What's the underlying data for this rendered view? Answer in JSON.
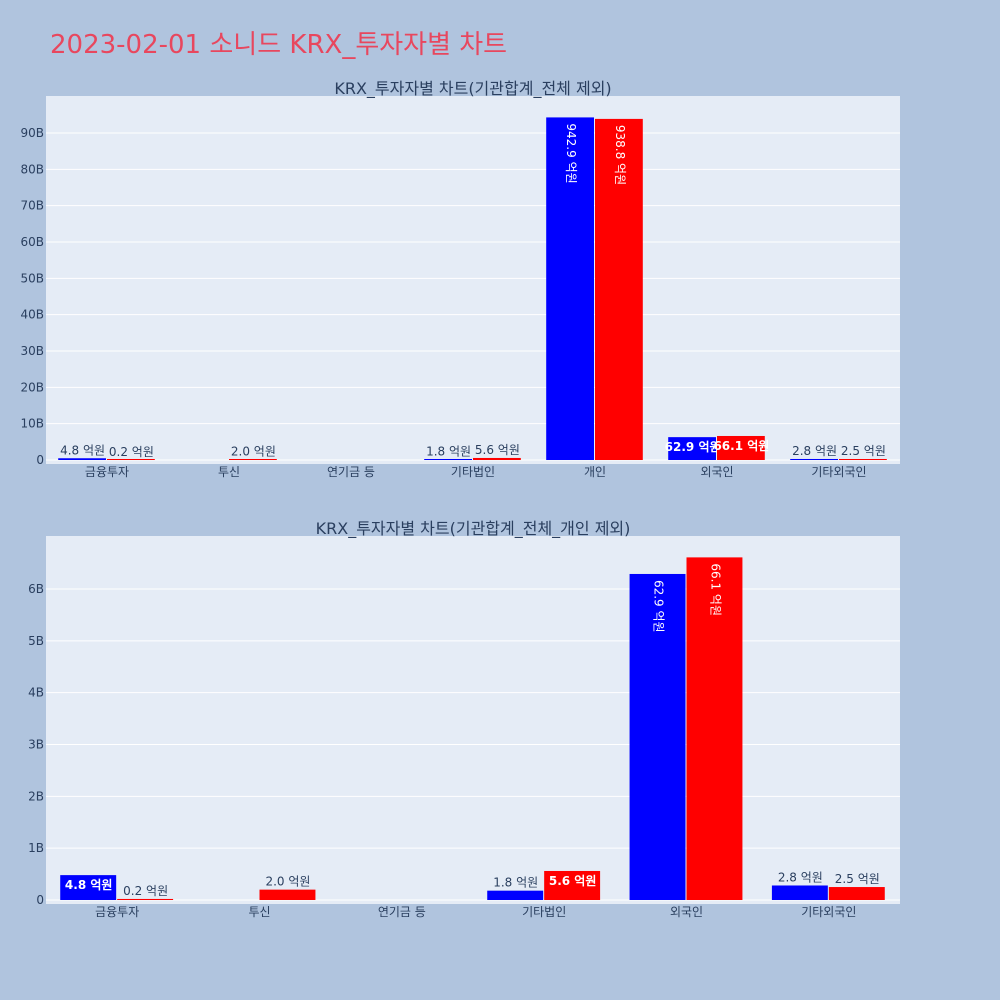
{
  "page_title": "2023-02-01 소니드 KRX_투자자별 차트",
  "colors": {
    "buy": "#0000ff",
    "sell": "#ff0000",
    "plot_bg": "#e5ecf6",
    "page_bg": "#b0c4de",
    "title": "#e8475e",
    "text": "#2a3f5f"
  },
  "chart_data": [
    {
      "type": "bar",
      "title": "KRX_투자자별 차트(기관합계_전체 제외)",
      "categories": [
        "금융투자",
        "투신",
        "연기금 등",
        "기타법인",
        "개인",
        "외국인",
        "기타외국인"
      ],
      "ylim": [
        0,
        100
      ],
      "yticks": [
        0,
        10,
        20,
        30,
        40,
        50,
        60,
        70,
        80,
        90
      ],
      "ytick_labels": [
        "0",
        "10B",
        "20B",
        "30B",
        "40B",
        "50B",
        "60B",
        "70B",
        "80B",
        "90B"
      ],
      "grid": true,
      "series": [
        {
          "color": "#0000ff",
          "values": [
            0.48,
            null,
            null,
            0.18,
            94.29,
            6.29,
            0.28
          ],
          "labels": [
            "4.8 억원",
            "",
            "",
            "1.8 억원",
            "942.9 억원",
            "62.9 억원",
            "2.8 억원"
          ]
        },
        {
          "color": "#ff0000",
          "values": [
            0.02,
            0.2,
            null,
            0.56,
            93.88,
            6.61,
            0.25
          ],
          "labels": [
            "0.2 억원",
            "2.0 억원",
            "",
            "5.6 억원",
            "938.8 억원",
            "66.1 억원",
            "2.5 억원"
          ]
        }
      ]
    },
    {
      "type": "bar",
      "title": "KRX_투자자별 차트(기관합계_전체_개인 제외)",
      "categories": [
        "금융투자",
        "투신",
        "연기금 등",
        "기타법인",
        "외국인",
        "기타외국인"
      ],
      "ylim": [
        0,
        7
      ],
      "yticks": [
        0,
        1,
        2,
        3,
        4,
        5,
        6
      ],
      "ytick_labels": [
        "0",
        "1B",
        "2B",
        "3B",
        "4B",
        "5B",
        "6B"
      ],
      "grid": true,
      "series": [
        {
          "color": "#0000ff",
          "values": [
            0.48,
            null,
            null,
            0.18,
            6.29,
            0.28
          ],
          "labels": [
            "4.8 억원",
            "",
            "",
            "1.8 억원",
            "62.9 억원",
            "2.8 억원"
          ]
        },
        {
          "color": "#ff0000",
          "values": [
            0.02,
            0.2,
            null,
            0.56,
            6.61,
            0.25
          ],
          "labels": [
            "0.2 억원",
            "2.0 억원",
            "",
            "5.6 억원",
            "66.1 억원",
            "2.5 억원"
          ]
        }
      ]
    }
  ]
}
